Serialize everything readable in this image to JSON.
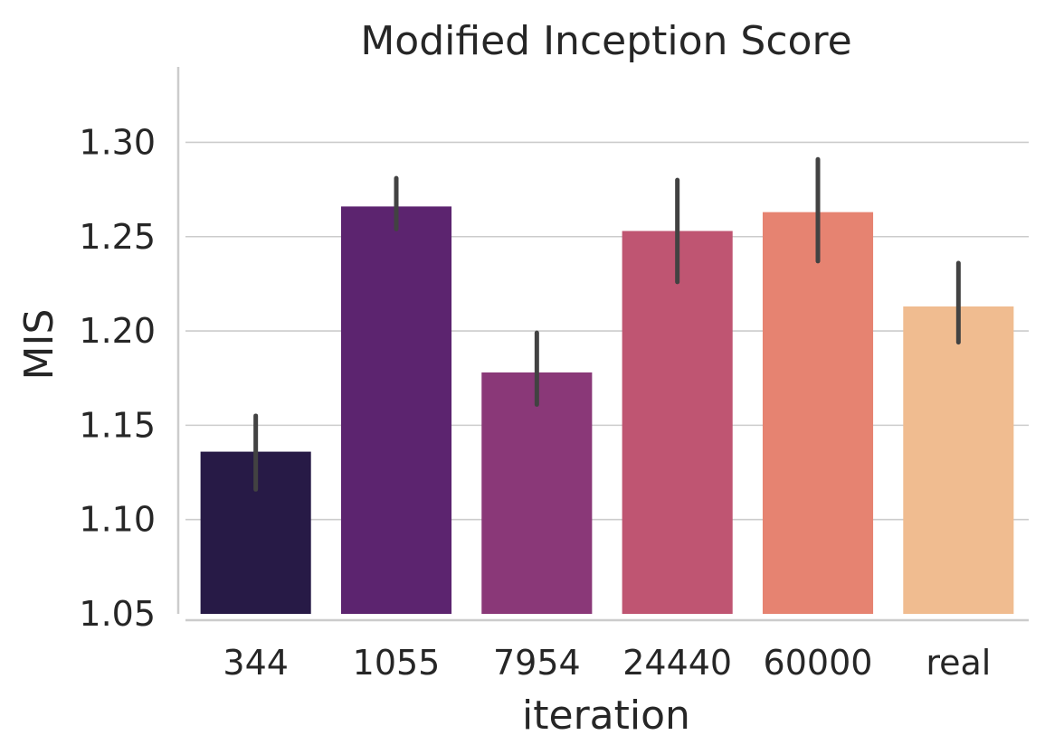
{
  "chart_data": {
    "type": "bar",
    "title": "Modified Inception Score",
    "xlabel": "iteration",
    "ylabel": "MIS",
    "categories": [
      "344",
      "1055",
      "7954",
      "24440",
      "60000",
      "real"
    ],
    "values": [
      1.136,
      1.266,
      1.178,
      1.253,
      1.263,
      1.213
    ],
    "error_low": [
      1.116,
      1.254,
      1.161,
      1.226,
      1.237,
      1.194
    ],
    "error_high": [
      1.155,
      1.281,
      1.199,
      1.28,
      1.291,
      1.236
    ],
    "ylim": [
      1.05,
      1.34
    ],
    "yticks": [
      "1.05",
      "1.10",
      "1.15",
      "1.20",
      "1.25",
      "1.30"
    ],
    "ytick_values": [
      1.05,
      1.1,
      1.15,
      1.2,
      1.25,
      1.3
    ],
    "grid": "horizontal",
    "colors": [
      "#271a46",
      "#5c246f",
      "#8a3878",
      "#bf5572",
      "#e68371",
      "#f0bc90"
    ],
    "errorbar_color": "#424242",
    "axis_color": "#cccccc",
    "grid_color": "#cccccc"
  }
}
